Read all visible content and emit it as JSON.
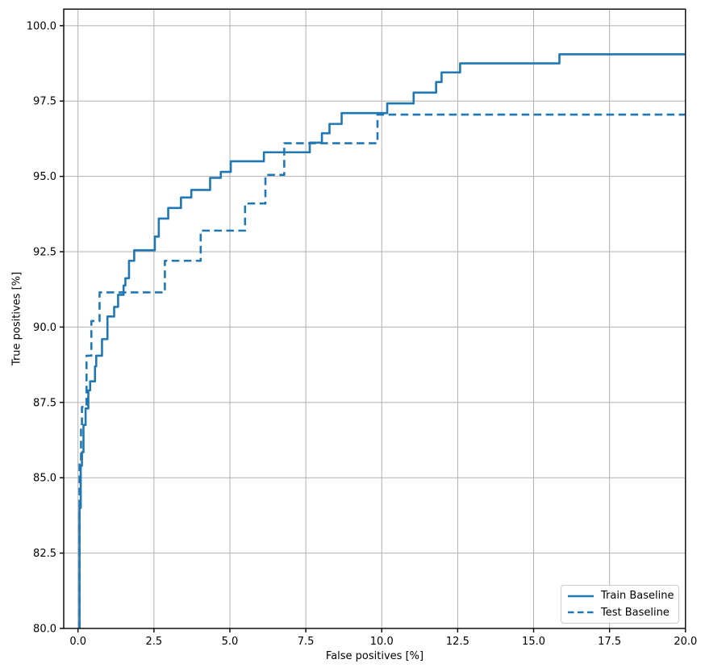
{
  "chart_data": {
    "type": "line",
    "title": "",
    "xlabel": "False positives [%]",
    "ylabel": "True positives [%]",
    "xlim": [
      -0.47,
      20.0
    ],
    "ylim": [
      80.0,
      100.55
    ],
    "grid": true,
    "grid_color": "#b0b0b0",
    "axis_color": "#000000",
    "legend_position": "lower right",
    "xticks": [
      0.0,
      2.5,
      5.0,
      7.5,
      10.0,
      12.5,
      15.0,
      17.5,
      20.0
    ],
    "xtick_labels": [
      "0.0",
      "2.5",
      "5.0",
      "7.5",
      "10.0",
      "12.5",
      "15.0",
      "17.5",
      "20.0"
    ],
    "yticks": [
      80.0,
      82.5,
      85.0,
      87.5,
      90.0,
      92.5,
      95.0,
      97.5,
      100.0
    ],
    "ytick_labels": [
      "80.0",
      "82.5",
      "85.0",
      "87.5",
      "90.0",
      "92.5",
      "95.0",
      "97.5",
      "100.0"
    ],
    "series": [
      {
        "name": "Train Baseline",
        "style": "solid",
        "color": "#1f77b4",
        "step": true,
        "points": [
          [
            0.05,
            80.0
          ],
          [
            0.05,
            84.0
          ],
          [
            0.09,
            84.0
          ],
          [
            0.09,
            85.4
          ],
          [
            0.13,
            85.4
          ],
          [
            0.13,
            85.85
          ],
          [
            0.18,
            85.85
          ],
          [
            0.18,
            86.75
          ],
          [
            0.25,
            86.75
          ],
          [
            0.25,
            87.3
          ],
          [
            0.34,
            87.3
          ],
          [
            0.34,
            87.9
          ],
          [
            0.4,
            87.9
          ],
          [
            0.4,
            88.2
          ],
          [
            0.56,
            88.2
          ],
          [
            0.56,
            88.7
          ],
          [
            0.6,
            88.7
          ],
          [
            0.6,
            89.05
          ],
          [
            0.79,
            89.05
          ],
          [
            0.79,
            89.6
          ],
          [
            0.97,
            89.6
          ],
          [
            0.97,
            90.35
          ],
          [
            1.19,
            90.35
          ],
          [
            1.19,
            90.67
          ],
          [
            1.32,
            90.67
          ],
          [
            1.32,
            91.07
          ],
          [
            1.5,
            91.07
          ],
          [
            1.5,
            91.38
          ],
          [
            1.56,
            91.38
          ],
          [
            1.56,
            91.62
          ],
          [
            1.68,
            91.62
          ],
          [
            1.68,
            92.2
          ],
          [
            1.85,
            92.2
          ],
          [
            1.85,
            92.55
          ],
          [
            2.53,
            92.55
          ],
          [
            2.53,
            93.0
          ],
          [
            2.66,
            93.0
          ],
          [
            2.66,
            93.6
          ],
          [
            2.97,
            93.6
          ],
          [
            2.97,
            93.95
          ],
          [
            3.39,
            93.95
          ],
          [
            3.39,
            94.3
          ],
          [
            3.73,
            94.3
          ],
          [
            3.73,
            94.55
          ],
          [
            4.35,
            94.55
          ],
          [
            4.35,
            94.95
          ],
          [
            4.7,
            94.95
          ],
          [
            4.7,
            95.15
          ],
          [
            5.03,
            95.15
          ],
          [
            5.03,
            95.5
          ],
          [
            6.12,
            95.5
          ],
          [
            6.12,
            95.8
          ],
          [
            7.63,
            95.8
          ],
          [
            7.63,
            96.12
          ],
          [
            8.03,
            96.12
          ],
          [
            8.03,
            96.43
          ],
          [
            8.28,
            96.43
          ],
          [
            8.28,
            96.74
          ],
          [
            8.68,
            96.74
          ],
          [
            8.68,
            97.1
          ],
          [
            10.18,
            97.1
          ],
          [
            10.18,
            97.42
          ],
          [
            11.05,
            97.42
          ],
          [
            11.05,
            97.78
          ],
          [
            11.79,
            97.78
          ],
          [
            11.79,
            98.13
          ],
          [
            11.97,
            98.13
          ],
          [
            11.97,
            98.45
          ],
          [
            12.58,
            98.45
          ],
          [
            12.58,
            98.75
          ],
          [
            15.85,
            98.75
          ],
          [
            15.85,
            99.05
          ],
          [
            20.0,
            99.05
          ]
        ]
      },
      {
        "name": "Test Baseline",
        "style": "dashed",
        "color": "#1f77b4",
        "step": true,
        "points": [
          [
            0.05,
            80.0
          ],
          [
            0.05,
            85.5
          ],
          [
            0.1,
            85.5
          ],
          [
            0.1,
            86.6
          ],
          [
            0.13,
            86.6
          ],
          [
            0.13,
            87.35
          ],
          [
            0.28,
            87.35
          ],
          [
            0.28,
            89.05
          ],
          [
            0.44,
            89.05
          ],
          [
            0.44,
            90.2
          ],
          [
            0.71,
            90.2
          ],
          [
            0.71,
            91.15
          ],
          [
            2.86,
            91.15
          ],
          [
            2.86,
            92.2
          ],
          [
            4.04,
            92.2
          ],
          [
            4.04,
            93.2
          ],
          [
            5.5,
            93.2
          ],
          [
            5.5,
            94.1
          ],
          [
            6.17,
            94.1
          ],
          [
            6.17,
            95.05
          ],
          [
            6.79,
            95.05
          ],
          [
            6.79,
            96.1
          ],
          [
            9.86,
            96.1
          ],
          [
            9.86,
            97.05
          ],
          [
            20.0,
            97.05
          ]
        ]
      }
    ]
  }
}
